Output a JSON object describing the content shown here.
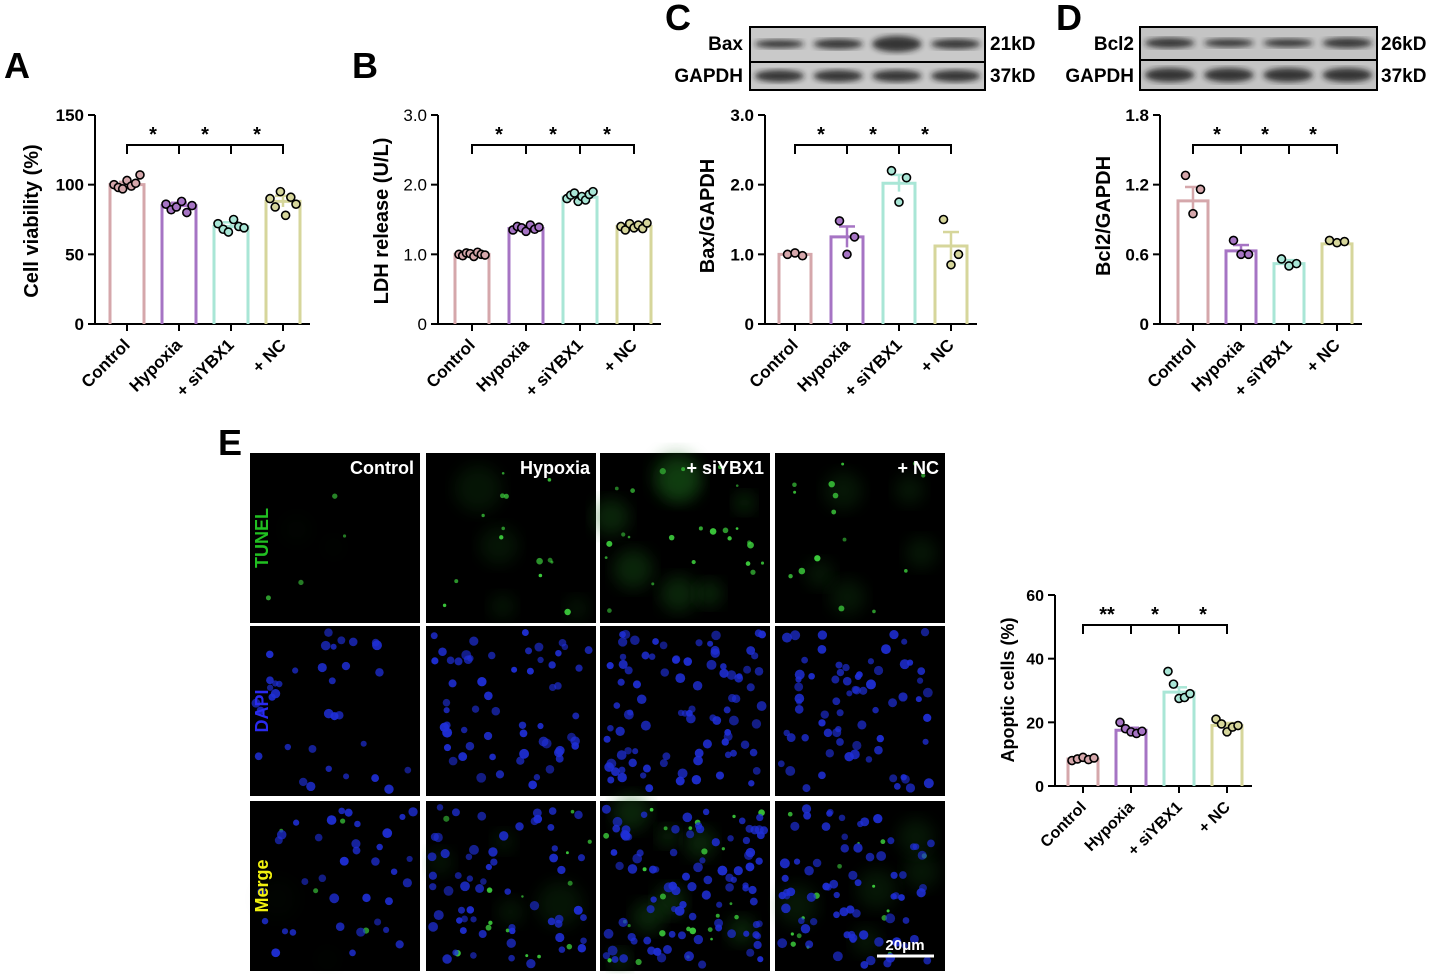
{
  "panel_letters": [
    "A",
    "B",
    "C",
    "D",
    "E"
  ],
  "groups": [
    "Control",
    "Hypoxia",
    "+ siYBX1",
    "+ NC"
  ],
  "group_colors": [
    "#d5a7ab",
    "#a674c4",
    "#a9e6d6",
    "#d6d69b"
  ],
  "chart_data": [
    {
      "id": "A",
      "type": "bar",
      "categories": [
        "Control",
        "Hypoxia",
        "+ siYBX1",
        "+ NC"
      ],
      "ylabel": "Cell viability (%)",
      "ylim": [
        0,
        150
      ],
      "yticks": [
        "0",
        "50",
        "100",
        "150"
      ],
      "values": [
        100,
        85,
        70,
        88
      ],
      "sem": [
        2,
        2,
        3,
        4
      ],
      "points": [
        [
          100,
          98,
          97,
          103,
          99,
          101,
          107
        ],
        [
          86,
          82,
          84,
          88,
          80,
          85
        ],
        [
          72,
          68,
          66,
          75,
          70,
          69
        ],
        [
          90,
          84,
          95,
          78,
          91,
          86
        ]
      ],
      "significance": [
        "*",
        "*",
        "*"
      ]
    },
    {
      "id": "B",
      "type": "bar",
      "categories": [
        "Control",
        "Hypoxia",
        "+ siYBX1",
        "+ NC"
      ],
      "ylabel": "LDH  release (U/L)",
      "ylim": [
        0,
        3
      ],
      "yticks": [
        "0",
        "1.0",
        "2.0",
        "3.0"
      ],
      "values": [
        1.0,
        1.37,
        1.82,
        1.4
      ],
      "sem": [
        0.02,
        0.03,
        0.04,
        0.03
      ],
      "points": [
        [
          1.0,
          0.98,
          1.02,
          1.01,
          0.97,
          1.03,
          1.0,
          0.99
        ],
        [
          1.35,
          1.4,
          1.38,
          1.33,
          1.42,
          1.36,
          1.39
        ],
        [
          1.8,
          1.85,
          1.88,
          1.76,
          1.83,
          1.78,
          1.86,
          1.9
        ],
        [
          1.4,
          1.35,
          1.44,
          1.38,
          1.42,
          1.37,
          1.45
        ]
      ],
      "significance": [
        "*",
        "*",
        "*"
      ]
    },
    {
      "id": "C",
      "type": "bar",
      "categories": [
        "Control",
        "Hypoxia",
        "+ siYBX1",
        "+ NC"
      ],
      "ylabel": "Bax/GAPDH",
      "ylim": [
        0,
        3
      ],
      "yticks": [
        "0",
        "1.0",
        "2.0",
        "3.0"
      ],
      "values": [
        1.0,
        1.25,
        2.02,
        1.12
      ],
      "sem": [
        0.02,
        0.15,
        0.12,
        0.2
      ],
      "points": [
        [
          1.0,
          1.02,
          0.98
        ],
        [
          1.48,
          1.0,
          1.25
        ],
        [
          2.2,
          1.75,
          2.1
        ],
        [
          1.5,
          0.85,
          1.0
        ]
      ],
      "significance": [
        "*",
        "*",
        "*"
      ],
      "blot_bands": [
        "Bax",
        "GAPDH"
      ],
      "blot_sizes": [
        "21kD",
        "37kD"
      ]
    },
    {
      "id": "D",
      "type": "bar",
      "categories": [
        "Control",
        "Hypoxia",
        "+ siYBX1",
        "+ NC"
      ],
      "ylabel": "Bcl2/GAPDH",
      "ylim": [
        0,
        1.8
      ],
      "yticks": [
        "0",
        "0.6",
        "1.2",
        "1.8"
      ],
      "values": [
        1.06,
        0.63,
        0.52,
        0.69
      ],
      "sem": [
        0.12,
        0.05,
        0.03,
        0.02
      ],
      "points": [
        [
          1.28,
          0.95,
          1.16
        ],
        [
          0.72,
          0.6,
          0.6
        ],
        [
          0.56,
          0.5,
          0.52
        ],
        [
          0.72,
          0.7,
          0.71
        ]
      ],
      "significance": [
        "*",
        "*",
        "*"
      ],
      "blot_bands": [
        "Bcl2",
        "GAPDH"
      ],
      "blot_sizes": [
        "26kD",
        "37kD"
      ]
    },
    {
      "id": "E",
      "type": "bar",
      "categories": [
        "Control",
        "Hypoxia",
        "+ siYBX1",
        "+ NC"
      ],
      "ylabel": "Apoptic cells (%)",
      "ylim": [
        0,
        60
      ],
      "yticks": [
        "0",
        "20",
        "40",
        "60"
      ],
      "values": [
        8.5,
        17.5,
        29.5,
        19.0
      ],
      "sem": [
        0.5,
        0.8,
        1.5,
        0.8
      ],
      "points": [
        [
          8,
          8.5,
          9,
          8.3,
          8.8
        ],
        [
          20,
          18,
          17,
          16.5,
          17.2
        ],
        [
          36,
          32,
          27.5,
          27.8,
          29
        ],
        [
          21,
          19.5,
          17,
          18.5,
          19
        ]
      ],
      "significance": [
        "**",
        "*",
        "*"
      ]
    }
  ],
  "microscopy": {
    "columns": [
      "Control",
      "Hypoxia",
      "+ siYBX1",
      "+ NC"
    ],
    "rows": [
      {
        "label": "TUNEL",
        "color": "#21c021"
      },
      {
        "label": "DAPI",
        "color": "#2a2af0"
      },
      {
        "label": "Merge",
        "color": "#f2f20f"
      }
    ],
    "scale_bar": "20μm"
  }
}
